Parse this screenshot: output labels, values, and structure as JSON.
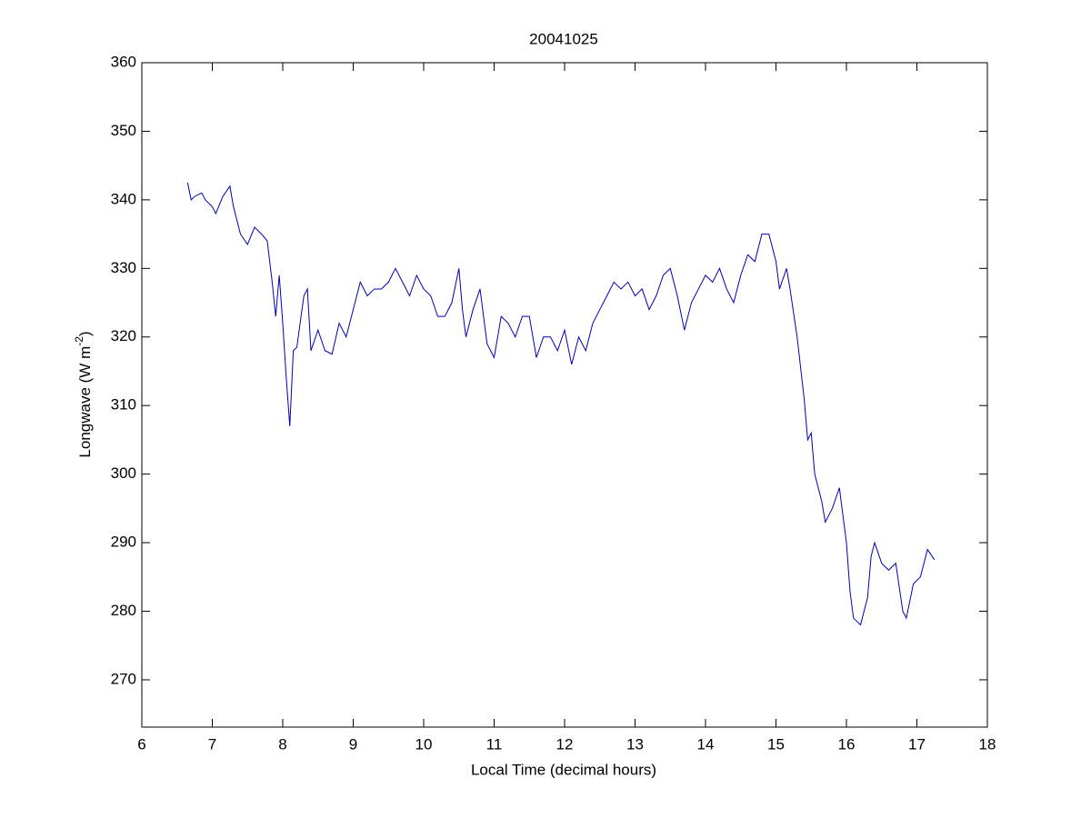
{
  "chart_data": {
    "type": "line",
    "title": "20041025",
    "xlabel": "Local Time (decimal hours)",
    "ylabel": [
      "Longwave (W m",
      "-2",
      ")"
    ],
    "xlim": [
      6,
      18
    ],
    "ylim": [
      263.1,
      360
    ],
    "xticks": [
      6,
      7,
      8,
      9,
      10,
      11,
      12,
      13,
      14,
      15,
      16,
      17,
      18
    ],
    "yticks": [
      270,
      280,
      290,
      300,
      310,
      320,
      330,
      340,
      350,
      360
    ],
    "x": [
      6.65,
      6.7,
      6.75,
      6.85,
      6.9,
      7.0,
      7.05,
      7.15,
      7.25,
      7.3,
      7.4,
      7.5,
      7.6,
      7.7,
      7.78,
      7.85,
      7.9,
      7.95,
      8.0,
      8.05,
      8.1,
      8.15,
      8.2,
      8.3,
      8.35,
      8.4,
      8.5,
      8.6,
      8.7,
      8.8,
      8.9,
      9.0,
      9.1,
      9.2,
      9.3,
      9.4,
      9.5,
      9.6,
      9.7,
      9.8,
      9.9,
      10.0,
      10.1,
      10.2,
      10.3,
      10.4,
      10.5,
      10.55,
      10.6,
      10.7,
      10.8,
      10.9,
      11.0,
      11.1,
      11.2,
      11.3,
      11.4,
      11.5,
      11.6,
      11.7,
      11.8,
      11.9,
      12.0,
      12.1,
      12.2,
      12.3,
      12.4,
      12.5,
      12.6,
      12.7,
      12.8,
      12.9,
      13.0,
      13.1,
      13.2,
      13.3,
      13.4,
      13.5,
      13.6,
      13.7,
      13.8,
      13.9,
      14.0,
      14.1,
      14.2,
      14.3,
      14.4,
      14.5,
      14.6,
      14.7,
      14.8,
      14.9,
      15.0,
      15.05,
      15.15,
      15.2,
      15.3,
      15.4,
      15.45,
      15.5,
      15.55,
      15.65,
      15.7,
      15.8,
      15.9,
      16.0,
      16.05,
      16.1,
      16.2,
      16.3,
      16.35,
      16.4,
      16.5,
      16.6,
      16.7,
      16.8,
      16.85,
      16.95,
      17.05,
      17.15,
      17.25
    ],
    "series": [
      {
        "color": "#0000b4",
        "values": [
          342.5,
          340,
          340.5,
          341,
          340,
          339,
          338,
          340.5,
          342,
          339,
          335,
          333.5,
          336,
          335,
          334,
          328,
          323,
          329,
          322,
          314,
          307,
          318,
          318.5,
          326,
          327,
          318,
          321,
          318,
          317.5,
          322,
          320,
          324,
          328,
          326,
          327,
          327,
          328,
          330,
          328,
          326,
          329,
          327,
          326,
          323,
          323,
          325,
          330,
          324,
          320,
          324,
          327,
          319,
          317,
          323,
          322,
          320,
          323,
          323,
          317,
          320,
          320,
          318,
          321,
          316,
          320,
          318,
          322,
          324,
          326,
          328,
          327,
          328,
          326,
          327,
          324,
          326,
          329,
          330,
          326,
          321,
          325,
          327,
          329,
          328,
          330,
          327,
          325,
          329,
          332,
          331,
          335,
          335,
          331,
          327,
          330,
          327,
          320,
          311,
          305,
          306,
          300,
          296,
          293,
          295,
          298,
          290,
          283,
          279,
          278,
          282,
          288,
          290,
          287,
          286,
          287,
          280,
          279,
          284,
          285,
          289,
          287.5
        ]
      }
    ]
  }
}
